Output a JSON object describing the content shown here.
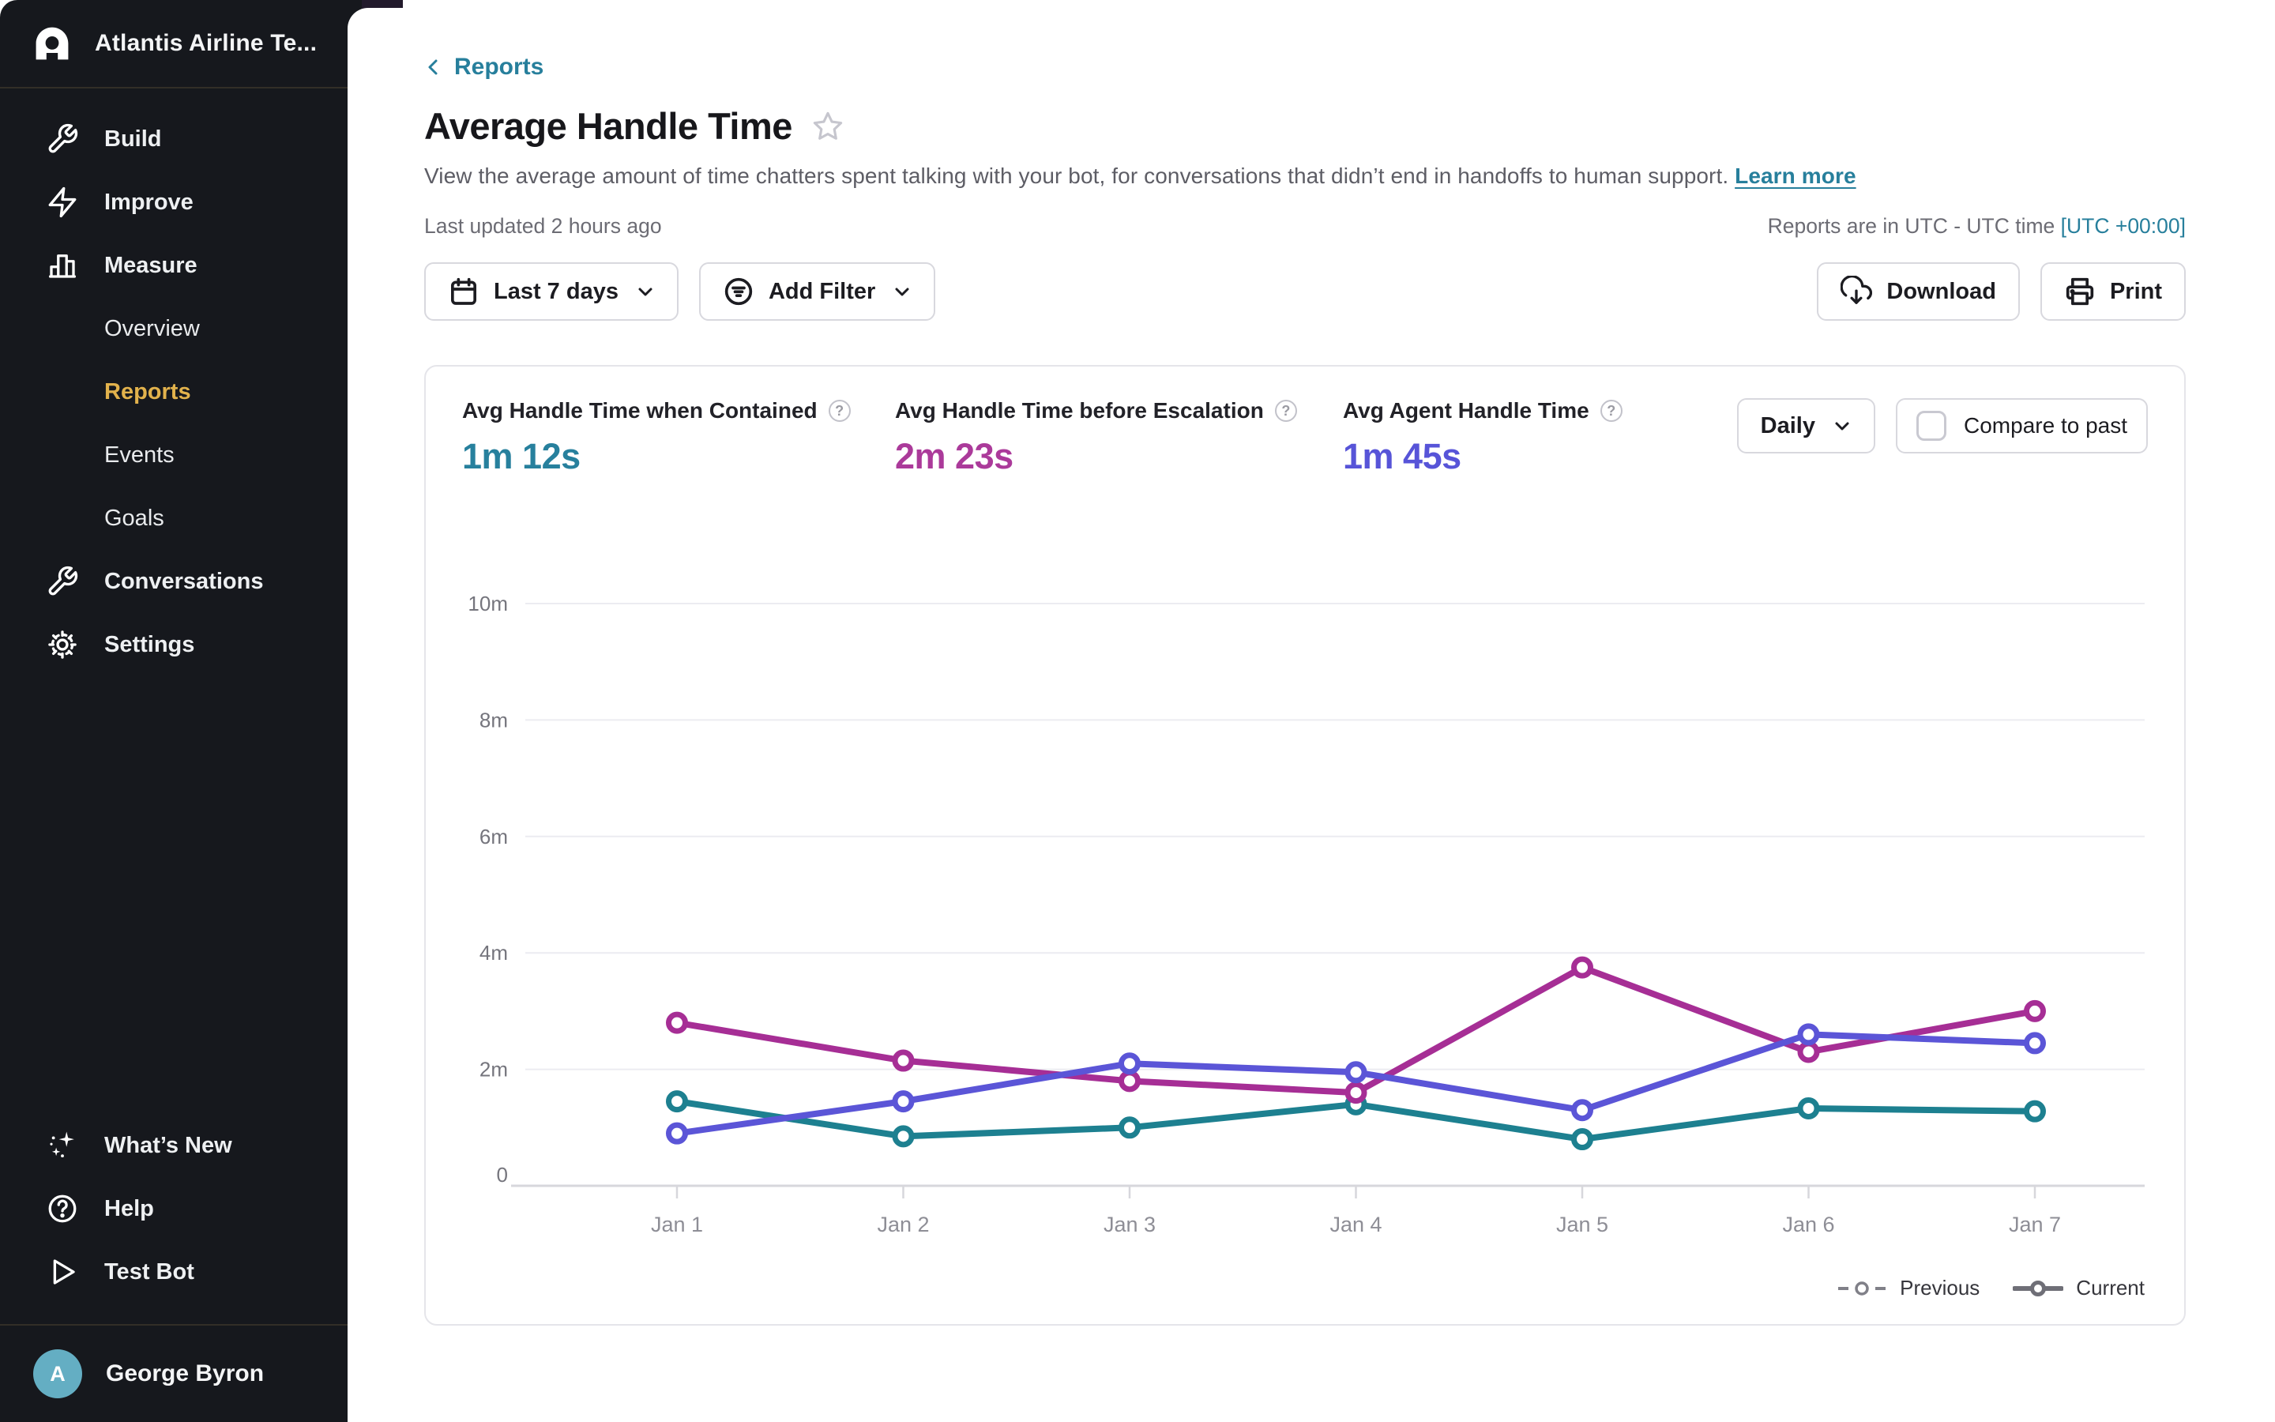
{
  "sidebar": {
    "team_name": "Atlantis Airline Te...",
    "nav_top": [
      {
        "label": "Build"
      },
      {
        "label": "Improve"
      },
      {
        "label": "Measure"
      }
    ],
    "nav_sub": [
      {
        "label": "Overview"
      },
      {
        "label": "Reports"
      },
      {
        "label": "Events"
      },
      {
        "label": "Goals"
      }
    ],
    "nav_mid": [
      {
        "label": "Conversations"
      },
      {
        "label": "Settings"
      }
    ],
    "nav_footer": [
      {
        "label": "What’s New"
      },
      {
        "label": "Help"
      },
      {
        "label": "Test Bot"
      }
    ],
    "user": {
      "name": "George Byron",
      "avatar_letter": "A"
    }
  },
  "header": {
    "back_label": "Reports",
    "title": "Average Handle Time",
    "description": "View the average amount of time chatters spent talking with your bot, for conversations that didn’t end in handoffs to human support.",
    "learn_more_label": "Learn more",
    "last_updated": "Last updated 2 hours ago",
    "timezone_note": "Reports are in UTC - UTC time",
    "timezone_link": "[UTC +00:00]"
  },
  "toolbar": {
    "date_range_label": "Last 7 days",
    "add_filter_label": "Add Filter",
    "download_label": "Download",
    "print_label": "Print"
  },
  "stats": [
    {
      "label": "Avg Handle Time when Contained",
      "value": "1m 12s",
      "color": "#27809d"
    },
    {
      "label": "Avg Handle Time before Escalation",
      "value": "2m 23s",
      "color": "#ab3a9a"
    },
    {
      "label": "Avg Agent Handle Time",
      "value": "1m 45s",
      "color": "#5754d8"
    }
  ],
  "controls": {
    "interval_label": "Daily",
    "compare_label": "Compare to past",
    "compare_checked": false
  },
  "chart_data": {
    "type": "line",
    "x": [
      "Jan 1",
      "Jan 2",
      "Jan 3",
      "Jan 4",
      "Jan 5",
      "Jan 6",
      "Jan 7"
    ],
    "unit": "minutes",
    "ylim": [
      0,
      10
    ],
    "yticks": [
      {
        "v": 10,
        "label": "10m"
      },
      {
        "v": 8,
        "label": "8m"
      },
      {
        "v": 6,
        "label": "6m"
      },
      {
        "v": 4,
        "label": "4m"
      },
      {
        "v": 2,
        "label": "2m"
      },
      {
        "v": 0,
        "label": "0"
      }
    ],
    "grid": true,
    "legend_position": "bottom-right",
    "series": [
      {
        "name": "Avg Handle Time when Contained",
        "color": "#1d8090",
        "values": [
          1.45,
          0.85,
          1.0,
          1.4,
          0.8,
          1.33,
          1.28
        ]
      },
      {
        "name": "Avg Handle Time before Escalation",
        "color": "#a62e95",
        "values": [
          2.8,
          2.15,
          1.8,
          1.6,
          3.75,
          2.3,
          3.0
        ]
      },
      {
        "name": "Avg Agent Handle Time",
        "color": "#5b55d7",
        "values": [
          0.9,
          1.45,
          2.1,
          1.95,
          1.3,
          2.6,
          2.45
        ]
      }
    ],
    "legend": {
      "previous": "Previous",
      "current": "Current"
    }
  }
}
